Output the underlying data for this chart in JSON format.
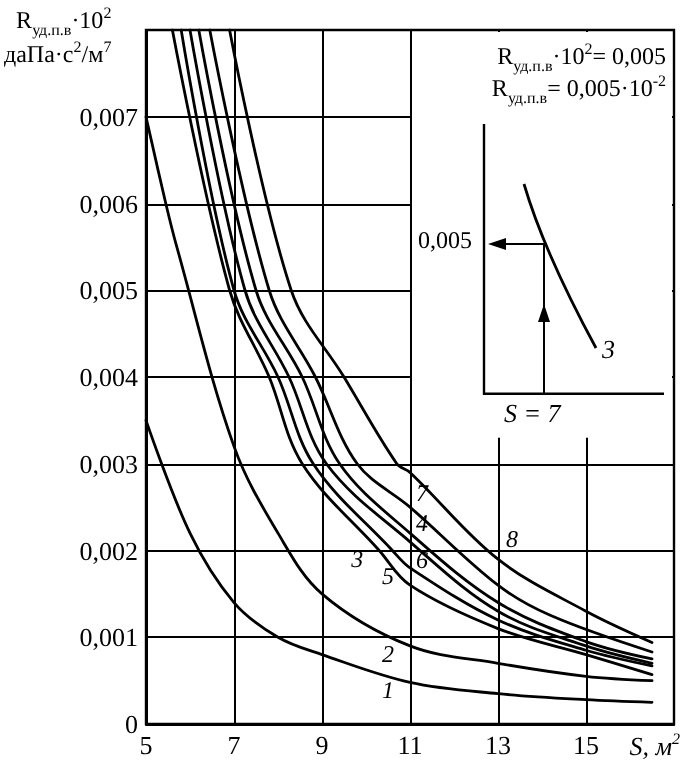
{
  "chart_data": {
    "type": "line",
    "ylabel": "R$_{уд.п.в}$·10$^{2}$\nдаПа·с$^{2}$/м$^{7}$",
    "xlabel": "S, м$^{2}$",
    "xlim": [
      5,
      17
    ],
    "xticks": [
      5,
      7,
      9,
      11,
      13,
      15
    ],
    "ylim": [
      0,
      0.008
    ],
    "yticks": [
      0,
      {
        "value": 0.001,
        "label": "0,001"
      },
      {
        "value": 0.002,
        "label": "0,002"
      },
      {
        "value": 0.003,
        "label": "0,003"
      },
      {
        "value": 0.004,
        "label": "0,004"
      },
      {
        "value": 0.005,
        "label": "0,005"
      },
      {
        "value": 0.006,
        "label": "0,006"
      },
      {
        "value": 0.007,
        "label": "0,007"
      }
    ],
    "grid": true,
    "marker": "none",
    "line_style": "solid",
    "annotations": [
      "R$_{уд.п.в}$·10$^{2}$= 0,005",
      "R$_{уд.п.в}$= 0,005·10$^{-2}$",
      "0,005",
      "S = 7",
      "3"
    ],
    "series": [
      {
        "name": "1",
        "color": "#000000",
        "x": [
          5,
          6,
          7,
          8,
          9,
          11,
          13,
          15,
          16.5
        ],
        "values": [
          0.0035,
          0.0022,
          0.0014,
          0.001,
          0.0008,
          0.00048,
          0.00035,
          0.00028,
          0.00025
        ]
      },
      {
        "name": "2",
        "color": "#000000",
        "x": [
          5,
          5.45,
          5.7,
          7,
          8,
          9,
          11,
          13,
          15,
          16.5
        ],
        "values": [
          0.007,
          0.006,
          0.0055,
          0.0032,
          0.0022,
          0.0015,
          0.0009,
          0.0007,
          0.00055,
          0.0005
        ]
      },
      {
        "name": "3",
        "color": "#000000",
        "x": [
          5.6,
          6.9,
          7.8,
          8.55,
          10.3,
          11,
          13,
          15,
          16.5
        ],
        "values": [
          0.008,
          0.005,
          0.004,
          0.003,
          0.002,
          0.0016,
          0.0011,
          0.0008,
          0.00057
        ]
      },
      {
        "name": "4",
        "color": "#000000",
        "x": [
          6.2,
          7.5,
          8.55,
          9.4,
          11,
          13,
          15,
          16.5
        ],
        "values": [
          0.008,
          0.005,
          0.004,
          0.003,
          0.0022,
          0.0014,
          0.00095,
          0.00075
        ]
      },
      {
        "name": "5",
        "color": "#000000",
        "x": [
          5.8,
          7.0,
          8.0,
          8.8,
          10.6,
          11,
          13,
          15,
          16.5
        ],
        "values": [
          0.008,
          0.005,
          0.004,
          0.003,
          0.002,
          0.0018,
          0.0012,
          0.00085,
          0.00067
        ]
      },
      {
        "name": "6",
        "color": "#000000",
        "x": [
          6.0,
          7.25,
          8.25,
          9.1,
          11,
          13,
          15,
          16.5
        ],
        "values": [
          0.008,
          0.005,
          0.004,
          0.003,
          0.0021,
          0.0013,
          0.0009,
          0.0007
        ]
      },
      {
        "name": "7",
        "color": "#000000",
        "x": [
          6.45,
          7.8,
          8.85,
          9.8,
          11,
          13,
          14.2,
          16.5
        ],
        "values": [
          0.008,
          0.005,
          0.004,
          0.003,
          0.0025,
          0.0016,
          0.00125,
          0.00083
        ]
      },
      {
        "name": "8",
        "color": "#000000",
        "x": [
          6.9,
          8.3,
          9.5,
          10.7,
          11,
          13,
          15,
          16.5
        ],
        "values": [
          0.008,
          0.005,
          0.004,
          0.003,
          0.0029,
          0.0019,
          0.0013,
          0.00094
        ]
      }
    ]
  }
}
